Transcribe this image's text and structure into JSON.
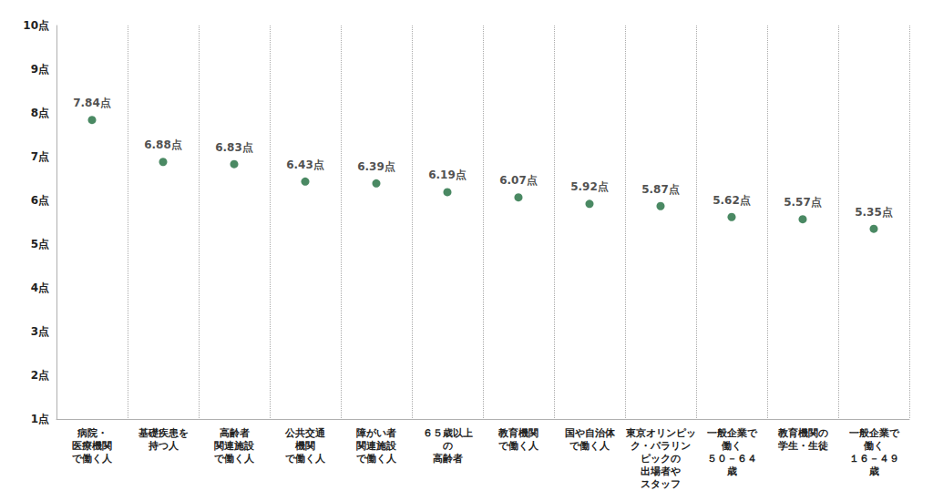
{
  "chart_data": {
    "type": "scatter",
    "categories": [
      "病院・\n医療機関\nで働く人",
      "基礎疾患を\n持つ人",
      "高齢者\n関連施設\nで働く人",
      "公共交通\n機関\nで働く人",
      "障がい者\n関連施設\nで働く人",
      "６５歳以上\nの\n高齢者",
      "教育機関\nで働く人",
      "国や自治体\nで働く人",
      "東京オリンピッ\nク・パラリン\nピックの\n出場者や\nスタッフ",
      "一般企業で\n働く\n５０－６４\n歳",
      "教育機関の\n学生・生徒",
      "一般企業で\n働く\n１６－４９\n歳"
    ],
    "values": [
      7.84,
      6.88,
      6.83,
      6.43,
      6.39,
      6.19,
      6.07,
      5.92,
      5.87,
      5.62,
      5.57,
      5.35
    ],
    "value_labels": [
      "7.84点",
      "6.88点",
      "6.83点",
      "6.43点",
      "6.39点",
      "6.19点",
      "6.07点",
      "5.92点",
      "5.87点",
      "5.62点",
      "5.57点",
      "5.35点"
    ],
    "color": "#1d6b3c",
    "ylim": [
      1,
      10
    ],
    "yticks": [
      {
        "value": 1,
        "label": "1点"
      },
      {
        "value": 2,
        "label": "2点"
      },
      {
        "value": 3,
        "label": "3点"
      },
      {
        "value": 4,
        "label": "4点"
      },
      {
        "value": 5,
        "label": "5点"
      },
      {
        "value": 6,
        "label": "6点"
      },
      {
        "value": 7,
        "label": "7点"
      },
      {
        "value": 8,
        "label": "8点"
      },
      {
        "value": 9,
        "label": "9点"
      },
      {
        "value": 10,
        "label": "10点"
      }
    ],
    "grid": true,
    "data_labels": true
  }
}
